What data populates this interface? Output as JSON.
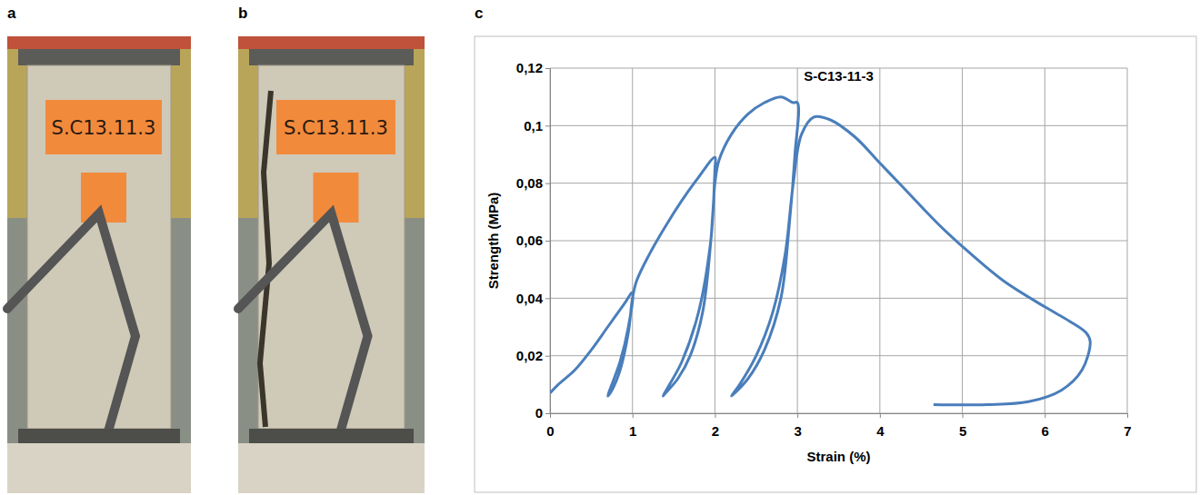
{
  "photos": [
    {
      "label": "a",
      "caption": "S.C13.11.3"
    },
    {
      "label": "b",
      "caption": "S.C13.11.3"
    }
  ],
  "chart_data": {
    "type": "line",
    "panel_label": "c",
    "title": "S-C13-11-3",
    "x_label": "Strain (%)",
    "y_label": "Strength (MPa)",
    "color": "#4a7ebb",
    "grid": true,
    "x": [
      0,
      0.1,
      0.3,
      0.5,
      0.7,
      0.9,
      1.0,
      0.95,
      0.85,
      0.75,
      0.7,
      0.75,
      0.85,
      0.95,
      1.0,
      1.05,
      1.2,
      1.4,
      1.6,
      1.8,
      2.0,
      2.0,
      1.95,
      1.85,
      1.7,
      1.55,
      1.4,
      1.37,
      1.45,
      1.6,
      1.8,
      1.95,
      2.0,
      2.05,
      2.2,
      2.4,
      2.6,
      2.8,
      2.95,
      3.0,
      2.97,
      2.9,
      2.8,
      2.6,
      2.4,
      2.2,
      2.3,
      2.5,
      2.7,
      2.85,
      2.95,
      3.05,
      3.2,
      3.4,
      3.7,
      4.0,
      4.3,
      4.7,
      5.0,
      5.5,
      6.0,
      6.3,
      6.5,
      6.55,
      6.45,
      6.2,
      5.8,
      5.3,
      4.65
    ],
    "values": [
      0.007,
      0.01,
      0.015,
      0.022,
      0.03,
      0.038,
      0.042,
      0.03,
      0.018,
      0.01,
      0.006,
      0.008,
      0.015,
      0.028,
      0.04,
      0.046,
      0.055,
      0.065,
      0.074,
      0.082,
      0.089,
      0.085,
      0.06,
      0.035,
      0.02,
      0.012,
      0.007,
      0.006,
      0.01,
      0.018,
      0.035,
      0.06,
      0.08,
      0.088,
      0.097,
      0.104,
      0.108,
      0.11,
      0.108,
      0.108,
      0.09,
      0.065,
      0.04,
      0.022,
      0.012,
      0.006,
      0.01,
      0.02,
      0.035,
      0.055,
      0.08,
      0.097,
      0.103,
      0.102,
      0.096,
      0.087,
      0.078,
      0.066,
      0.058,
      0.046,
      0.037,
      0.032,
      0.028,
      0.025,
      0.015,
      0.008,
      0.004,
      0.003,
      0.003
    ],
    "xlim": [
      0,
      7
    ],
    "xticks": [
      0,
      1,
      2,
      3,
      4,
      5,
      6,
      7
    ],
    "ylim": [
      0,
      0.12
    ],
    "yticks": [
      0,
      {
        "value": 0.02,
        "label": "0,02"
      },
      {
        "value": 0.04,
        "label": "0,04"
      },
      {
        "value": 0.06,
        "label": "0,06"
      },
      {
        "value": 0.08,
        "label": "0,08"
      },
      {
        "value": 0.1,
        "label": "0,1"
      },
      {
        "value": 0.12,
        "label": "0,12"
      }
    ]
  }
}
